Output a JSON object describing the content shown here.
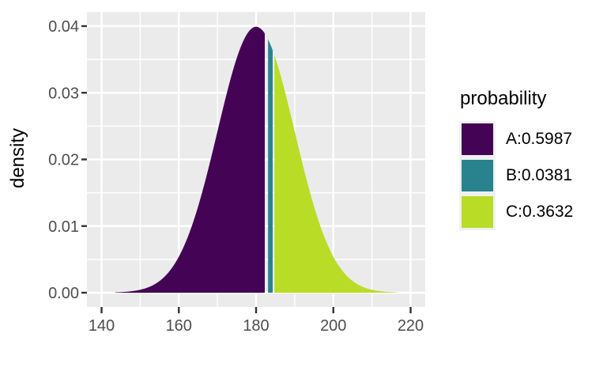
{
  "chart_data": {
    "type": "area",
    "title": "",
    "xlabel": "",
    "ylabel": "density",
    "x_tick_labels": [
      "140",
      "160",
      "180",
      "200",
      "220"
    ],
    "x_tick_values": [
      140,
      160,
      180,
      200,
      220
    ],
    "y_tick_labels": [
      "0.00",
      "0.01",
      "0.02",
      "0.03",
      "0.04"
    ],
    "y_tick_values": [
      0,
      0.01,
      0.02,
      0.03,
      0.04
    ],
    "xlim": [
      136.2,
      223.8
    ],
    "ylim": [
      0,
      0.0422
    ],
    "grid": "major-and-minor",
    "panel_background": "#ebebeb",
    "gridline_color": "#ffffff",
    "tick_color": "#333333",
    "tick_label_color": "#4d4d4d",
    "distribution": {
      "kind": "normal",
      "mean": 180,
      "sd": 10,
      "domain": [
        143.5,
        216.5
      ],
      "peak_density": 0.0399
    },
    "regions": [
      {
        "name": "A",
        "label": "A:0.5987",
        "probability": 0.5987,
        "x_range": [
          143.5,
          182.5
        ],
        "color": "#440355"
      },
      {
        "name": "B",
        "label": "B:0.0381",
        "probability": 0.0381,
        "x_range": [
          182.5,
          183.5
        ],
        "color": "#28838e"
      },
      {
        "name": "C",
        "label": "C:0.3632",
        "probability": 0.3632,
        "x_range": [
          183.5,
          216.5
        ],
        "color": "#b9dc27"
      }
    ],
    "legend": {
      "title": "probability",
      "position": "right"
    }
  }
}
